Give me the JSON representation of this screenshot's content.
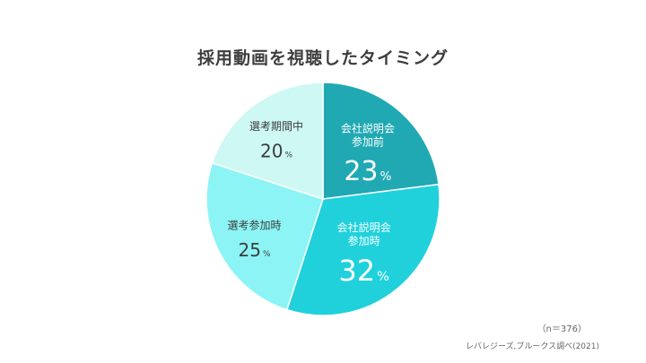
{
  "title": "採用動画を視聴したタイミング",
  "sample_size": "（n＝376）",
  "source": "レバレジーズ,ブルークス調べ(2021)",
  "chart_data": {
    "type": "pie",
    "unit": "%",
    "slices": [
      {
        "label_lines": [
          "会社説明会",
          "参加前"
        ],
        "value": 23,
        "color": "#20a9b3",
        "label_color": "#ffffff",
        "value_size": 30,
        "label_size": 12
      },
      {
        "label_lines": [
          "会社説明会",
          "参加時"
        ],
        "value": 32,
        "color": "#20d1dc",
        "label_color": "#ffffff",
        "value_size": 32,
        "label_size": 12
      },
      {
        "label_lines": [
          "選考参加時"
        ],
        "value": 25,
        "color": "#8cf4f4",
        "label_color": "#3d3d3d",
        "value_size": 20,
        "label_size": 12
      },
      {
        "label_lines": [
          "選考期間中"
        ],
        "value": 20,
        "color": "#cdf8f3",
        "label_color": "#3d3d3d",
        "value_size": 20,
        "label_size": 12
      }
    ]
  }
}
